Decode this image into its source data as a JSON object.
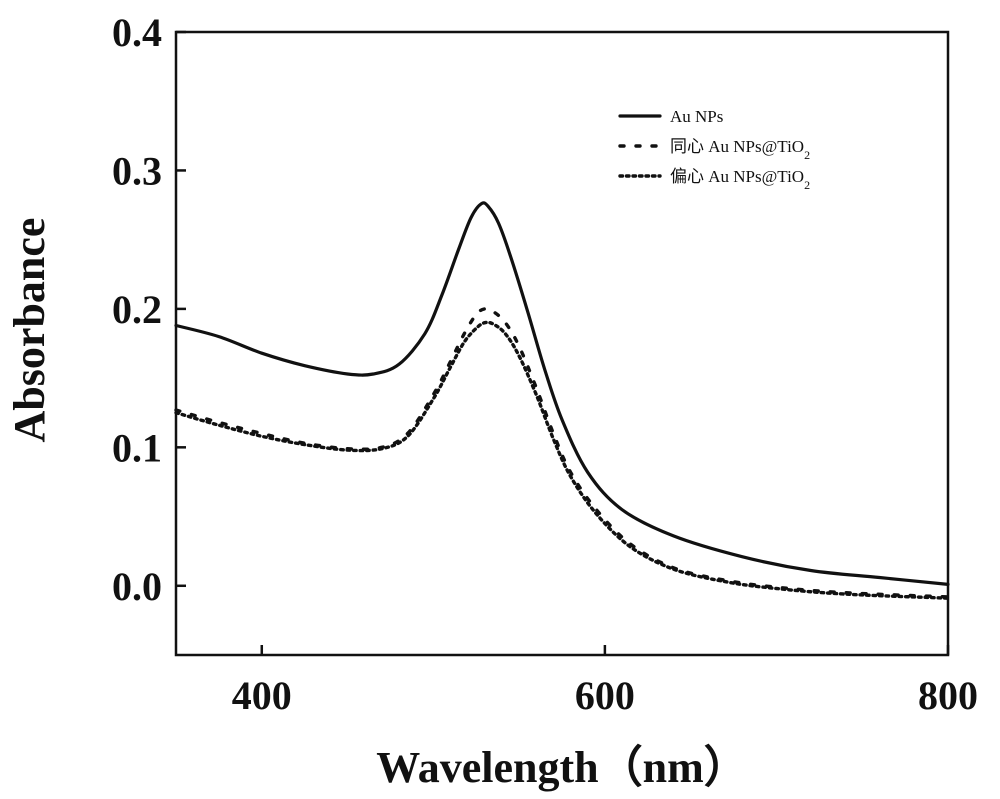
{
  "chart_data": {
    "type": "line",
    "title": "",
    "xlabel": "Wavelength（nm）",
    "ylabel": "Absorbance",
    "xlim": [
      350,
      800
    ],
    "ylim": [
      -0.05,
      0.4
    ],
    "xticks": [
      400,
      600,
      800
    ],
    "xtick_labels": [
      "400",
      "600",
      "800"
    ],
    "yticks": [
      0.0,
      0.1,
      0.2,
      0.3,
      0.4
    ],
    "ytick_labels": [
      "0.0",
      "0.1",
      "0.2",
      "0.3",
      "0.4"
    ],
    "grid": false,
    "legend_position": "top-right",
    "series": [
      {
        "name": "Au NPs",
        "label_prefix": "",
        "label_main": "Au NPs",
        "label_sub": "",
        "style": "solid",
        "color": "#111111",
        "x": [
          350,
          375,
          400,
          425,
          450,
          465,
          480,
          495,
          505,
          515,
          522,
          528,
          532,
          538,
          545,
          555,
          565,
          575,
          590,
          610,
          640,
          680,
          720,
          760,
          800
        ],
        "y": [
          0.188,
          0.18,
          0.168,
          0.159,
          0.153,
          0.153,
          0.16,
          0.182,
          0.21,
          0.244,
          0.266,
          0.276,
          0.274,
          0.262,
          0.238,
          0.198,
          0.156,
          0.12,
          0.082,
          0.055,
          0.036,
          0.021,
          0.011,
          0.006,
          0.001
        ]
      },
      {
        "name": "同心 Au NPs@TiO2",
        "label_prefix": "同心",
        "label_main": "Au NPs@TiO",
        "label_sub": "2",
        "style": "dashed",
        "color": "#111111",
        "x": [
          350,
          375,
          400,
          425,
          450,
          470,
          485,
          500,
          510,
          518,
          525,
          530,
          535,
          542,
          550,
          560,
          570,
          580,
          595,
          615,
          640,
          670,
          700,
          740,
          800
        ],
        "y": [
          0.127,
          0.118,
          0.11,
          0.103,
          0.099,
          0.1,
          0.11,
          0.138,
          0.162,
          0.182,
          0.196,
          0.2,
          0.198,
          0.19,
          0.173,
          0.143,
          0.11,
          0.082,
          0.055,
          0.03,
          0.013,
          0.004,
          -0.001,
          -0.005,
          -0.008
        ]
      },
      {
        "name": "偏心 Au NPs@TiO2",
        "label_prefix": "偏心",
        "label_main": "Au NPs@TiO",
        "label_sub": "2",
        "style": "dotted",
        "color": "#111111",
        "x": [
          350,
          375,
          400,
          425,
          450,
          470,
          485,
          500,
          510,
          518,
          525,
          530,
          535,
          542,
          550,
          560,
          570,
          580,
          595,
          615,
          640,
          670,
          700,
          740,
          800
        ],
        "y": [
          0.125,
          0.116,
          0.108,
          0.102,
          0.098,
          0.099,
          0.108,
          0.135,
          0.158,
          0.176,
          0.186,
          0.19,
          0.189,
          0.182,
          0.166,
          0.138,
          0.106,
          0.079,
          0.052,
          0.028,
          0.012,
          0.003,
          -0.002,
          -0.006,
          -0.009
        ]
      }
    ]
  }
}
